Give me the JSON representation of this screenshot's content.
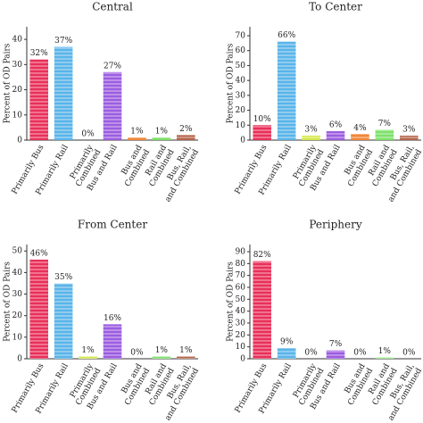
{
  "chart_data": [
    {
      "type": "bar",
      "title": "Central",
      "ylabel": "Percent of OD Pairs",
      "categories": [
        "Primarily Bus",
        "Primarily Rail",
        "Primarily\nCombined",
        "Bus and Rail",
        "Bus and\nCombined",
        "Rail and\nCombined",
        "Bus, Rail,\nand Combined"
      ],
      "values": [
        32,
        37,
        0,
        27,
        1,
        1,
        2
      ],
      "value_labels": [
        "32%",
        "37%",
        "0%",
        "27%",
        "1%",
        "1%",
        "2%"
      ],
      "colors": [
        "#e8305a",
        "#5ab4e8",
        "#d4e84a",
        "#9c5de0",
        "#f0883a",
        "#7ee06a",
        "#b5654a"
      ],
      "ylim": [
        0,
        45
      ],
      "yticks": [
        0,
        10,
        20,
        30,
        40
      ]
    },
    {
      "type": "bar",
      "title": "To Center",
      "ylabel": "Percent of OD Pairs",
      "categories": [
        "Primarily Bus",
        "Primarily Rail",
        "Primarily\nCombined",
        "Bus and Rail",
        "Bus and\nCombined",
        "Rail and\nCombined",
        "Bus, Rail,\nand Combined"
      ],
      "values": [
        10,
        66,
        3,
        6,
        4,
        7,
        3
      ],
      "value_labels": [
        "10%",
        "66%",
        "3%",
        "6%",
        "4%",
        "7%",
        "3%"
      ],
      "colors": [
        "#e8305a",
        "#5ab4e8",
        "#d4e84a",
        "#9c5de0",
        "#f0883a",
        "#7ee06a",
        "#b5654a"
      ],
      "ylim": [
        0,
        76
      ],
      "yticks": [
        0,
        10,
        20,
        30,
        40,
        50,
        60,
        70
      ]
    },
    {
      "type": "bar",
      "title": "From Center",
      "ylabel": "Percent of OD Pairs",
      "categories": [
        "Primarily Bus",
        "Primarily Rail",
        "Primarily\nCombined",
        "Bus and Rail",
        "Bus and\nCombined",
        "Rail and\nCombined",
        "Bus, Rail,\nand Combined"
      ],
      "values": [
        46,
        35,
        1,
        16,
        0,
        1,
        1
      ],
      "value_labels": [
        "46%",
        "35%",
        "1%",
        "16%",
        "0%",
        "1%",
        "1%"
      ],
      "colors": [
        "#e8305a",
        "#5ab4e8",
        "#d4e84a",
        "#9c5de0",
        "#f0883a",
        "#7ee06a",
        "#b5654a"
      ],
      "ylim": [
        0,
        53
      ],
      "yticks": [
        0,
        10,
        20,
        30,
        40,
        50
      ]
    },
    {
      "type": "bar",
      "title": "Periphery",
      "ylabel": "Percent of OD Pairs",
      "categories": [
        "Primarily Bus",
        "Primarily Rail",
        "Primarily\nCombined",
        "Bus and Rail",
        "Bus and\nCombined",
        "Rail and\nCombined",
        "Bus, Rail,\nand Combined"
      ],
      "values": [
        82,
        9,
        0,
        7,
        0,
        1,
        0
      ],
      "value_labels": [
        "82%",
        "9%",
        "0%",
        "7%",
        "0%",
        "1%",
        "0%"
      ],
      "colors": [
        "#e8305a",
        "#5ab4e8",
        "#d4e84a",
        "#9c5de0",
        "#f0883a",
        "#7ee06a",
        "#b5654a"
      ],
      "ylim": [
        0,
        96
      ],
      "yticks": [
        0,
        10,
        20,
        30,
        40,
        50,
        60,
        70,
        80,
        90
      ]
    }
  ]
}
